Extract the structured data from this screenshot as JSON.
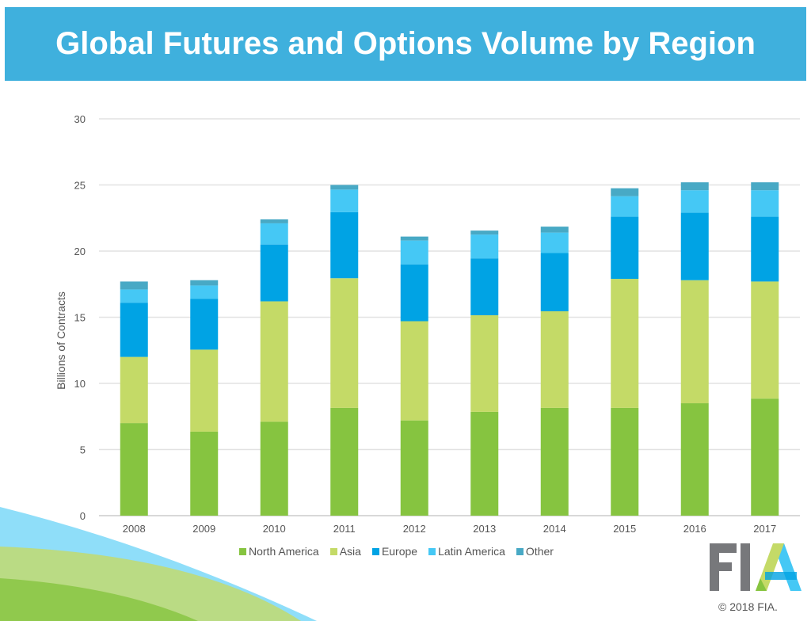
{
  "colors": {
    "title_bar": "#3fb0dd",
    "north_america": "#86c440",
    "asia": "#c4da67",
    "europe": "#00a3e4",
    "latin_america": "#45c8f5",
    "other": "#48a9c5"
  },
  "chart_data": {
    "type": "bar",
    "stacked": true,
    "title": "Global Futures and Options Volume by Region",
    "xlabel": "",
    "ylabel": "Billions of Contracts",
    "ylim": [
      0,
      30
    ],
    "yticks": [
      0,
      5,
      10,
      15,
      20,
      25,
      30
    ],
    "grid": true,
    "legend_position": "bottom",
    "categories": [
      "2008",
      "2009",
      "2010",
      "2011",
      "2012",
      "2013",
      "2014",
      "2015",
      "2016",
      "2017"
    ],
    "series": [
      {
        "name": "North America",
        "values": [
          7.0,
          6.35,
          7.1,
          8.15,
          7.2,
          7.85,
          8.15,
          8.15,
          8.5,
          8.85
        ]
      },
      {
        "name": "Asia",
        "values": [
          5.0,
          6.2,
          9.1,
          9.8,
          7.5,
          7.3,
          7.3,
          9.75,
          9.3,
          8.85
        ]
      },
      {
        "name": "Europe",
        "values": [
          4.1,
          3.85,
          4.3,
          5.0,
          4.3,
          4.3,
          4.4,
          4.7,
          5.1,
          4.9
        ]
      },
      {
        "name": "Latin America",
        "values": [
          1.0,
          1.0,
          1.6,
          1.7,
          1.8,
          1.8,
          1.55,
          1.55,
          1.7,
          2.0
        ]
      },
      {
        "name": "Other",
        "values": [
          0.6,
          0.4,
          0.3,
          0.35,
          0.3,
          0.3,
          0.45,
          0.6,
          0.6,
          0.6
        ]
      }
    ]
  },
  "logo": {
    "text": "FIA"
  },
  "copyright": "© 2018 FIA."
}
